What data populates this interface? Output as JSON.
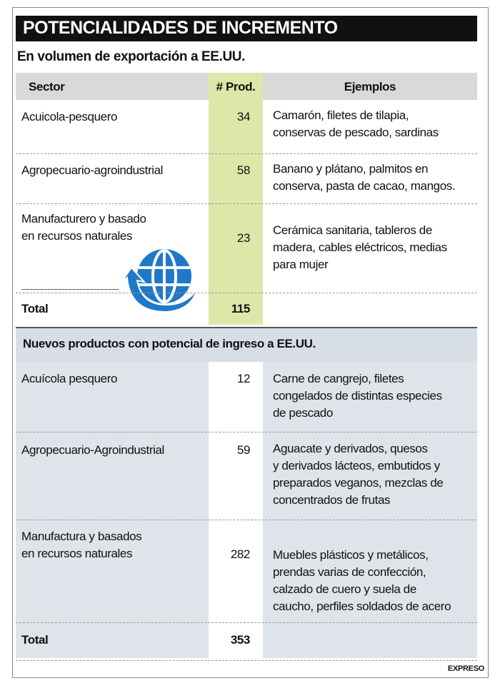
{
  "title": "POTENCIALIDADES DE INCREMENTO",
  "subtitle": "En volumen de exportación a EE.UU.",
  "header": [
    "Sector",
    "# Prod.",
    "Ejemplos"
  ],
  "section1": {
    "rows": [
      {
        "sector": [
          "Acuicola-pesquero"
        ],
        "prod": "34",
        "examples": [
          "Camarón, filetes de tilapia,",
          "conservas de pescado, sardinas"
        ]
      },
      {
        "sector": [
          "Agropecuario-agroindustrial"
        ],
        "prod": "58",
        "examples": [
          "Banano y plátano, palmitos en",
          "conserva, pasta de cacao, mangos."
        ]
      },
      {
        "sector": [
          "Manufacturero y basado",
          "en recursos naturales"
        ],
        "prod": "23",
        "examples": [
          "Cerámica sanitaria, tableros de",
          "madera, cables eléctricos, medias",
          "para mujer"
        ]
      }
    ],
    "total": {
      "label": "Total",
      "prod": "115"
    }
  },
  "section2": {
    "heading": "Nuevos productos con potencial de ingreso a EE.UU.",
    "rows": [
      {
        "sector": [
          "Acuícola pesquero"
        ],
        "prod": "12",
        "examples": [
          "Carne de cangrejo, filetes",
          "congelados de distintas especies",
          "de pescado"
        ]
      },
      {
        "sector": [
          "Agropecuario-Agroindustrial"
        ],
        "prod": "59",
        "examples": [
          "Aguacate y derivados, quesos",
          "y derivados lácteos, embutidos y",
          "preparados veganos, mezclas de",
          "concentrados de frutas"
        ]
      },
      {
        "sector": [
          "Manufactura y basados",
          "en recursos naturales"
        ],
        "prod": "282",
        "examples": [
          "Muebles plásticos y metálicos,",
          "prendas varias de confección,",
          "calzado de cuero y suela de",
          "caucho, perfiles soldados de acero"
        ]
      }
    ],
    "total": {
      "label": "Total",
      "prod": "353"
    }
  },
  "source": "EXPRESO"
}
